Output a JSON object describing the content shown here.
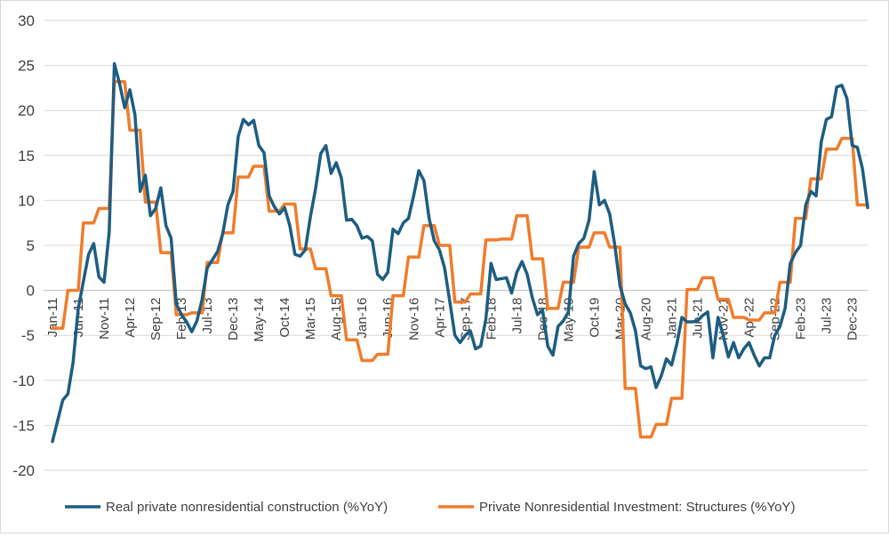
{
  "chart_data": {
    "type": "line",
    "title": "",
    "xlabel": "",
    "ylabel": "",
    "ylim": [
      -20,
      30
    ],
    "yticks": [
      30,
      25,
      20,
      15,
      10,
      5,
      0,
      -5,
      -10,
      -15,
      -20
    ],
    "ytick_labels": [
      "30",
      "25",
      "20",
      "15",
      "10",
      "5",
      "0",
      "-5",
      "-10",
      "-15",
      "-20"
    ],
    "gridlines": true,
    "legend_position": "bottom",
    "start_month": "Jan-11",
    "xtick_labels": [
      {
        "index": 0,
        "label": "Jan-11"
      },
      {
        "index": 5,
        "label": "Jun-11"
      },
      {
        "index": 10,
        "label": "Nov-11"
      },
      {
        "index": 15,
        "label": "Apr-12"
      },
      {
        "index": 20,
        "label": "Sep-12"
      },
      {
        "index": 25,
        "label": "Feb-13"
      },
      {
        "index": 30,
        "label": "Jul-13"
      },
      {
        "index": 35,
        "label": "Dec-13"
      },
      {
        "index": 40,
        "label": "May-14"
      },
      {
        "index": 45,
        "label": "Oct-14"
      },
      {
        "index": 50,
        "label": "Mar-15"
      },
      {
        "index": 55,
        "label": "Aug-15"
      },
      {
        "index": 60,
        "label": "Jan-16"
      },
      {
        "index": 65,
        "label": "Jun-16"
      },
      {
        "index": 70,
        "label": "Nov-16"
      },
      {
        "index": 75,
        "label": "Apr-17"
      },
      {
        "index": 80,
        "label": "Sep-17"
      },
      {
        "index": 85,
        "label": "Feb-18"
      },
      {
        "index": 90,
        "label": "Jul-18"
      },
      {
        "index": 95,
        "label": "Dec-18"
      },
      {
        "index": 100,
        "label": "May-19"
      },
      {
        "index": 105,
        "label": "Oct-19"
      },
      {
        "index": 110,
        "label": "Mar-20"
      },
      {
        "index": 115,
        "label": "Aug-20"
      },
      {
        "index": 120,
        "label": "Jan-21"
      },
      {
        "index": 125,
        "label": "Jun-21"
      },
      {
        "index": 130,
        "label": "Nov-21"
      },
      {
        "index": 135,
        "label": "Apr-22"
      },
      {
        "index": 140,
        "label": "Sep-22"
      },
      {
        "index": 145,
        "label": "Feb-23"
      },
      {
        "index": 150,
        "label": "Jul-23"
      },
      {
        "index": 155,
        "label": "Dec-23"
      }
    ],
    "series": [
      {
        "name": "Real private nonresidential construction (%YoY)",
        "color": "#1d5d82",
        "values": [
          -16.8,
          -14.5,
          -12.2,
          -11.5,
          -8,
          -2,
          1,
          4,
          5.2,
          1.5,
          0.9,
          6.5,
          25.2,
          23,
          20.3,
          22.3,
          19.5,
          11,
          12.8,
          8.3,
          9.1,
          11.4,
          7.2,
          5.8,
          -1.5,
          -2.7,
          -3.5,
          -4.6,
          -3.4,
          -1,
          2.5,
          3.4,
          4.3,
          6.3,
          9.5,
          11,
          17.1,
          19,
          18.4,
          18.9,
          16.1,
          15.3,
          10.5,
          9.3,
          8.5,
          9.2,
          7.2,
          4,
          3.8,
          4.5,
          8.2,
          11.3,
          15.2,
          16.1,
          13,
          14.2,
          12.5,
          7.8,
          7.9,
          7.2,
          5.8,
          6,
          5.5,
          1.8,
          1.2,
          2,
          6.8,
          6.3,
          7.5,
          8,
          10.5,
          13.3,
          12.2,
          8,
          5.5,
          4.5,
          2.5,
          -1.2,
          -5,
          -5.8,
          -5,
          -4.5,
          -6.5,
          -6.2,
          -3.2,
          3,
          1.2,
          1.3,
          1.4,
          -0.3,
          2,
          3.2,
          1.8,
          -0.8,
          -2.7,
          -2.2,
          -6.2,
          -7.2,
          -4,
          -3.4,
          -2.4,
          3.8,
          5.2,
          5.8,
          7.8,
          13.2,
          9.5,
          10,
          8.5,
          5,
          0.5,
          -1.5,
          -2.5,
          -4.5,
          -8.4,
          -8.7,
          -8.5,
          -10.8,
          -9.5,
          -7.6,
          -8.3,
          -6,
          -3,
          -3.5,
          -3.5,
          -3.4,
          -2.8,
          -2.4,
          -7.5,
          -3,
          -5,
          -7.4,
          -5.8,
          -7.5,
          -6.5,
          -5.8,
          -7.2,
          -8.4,
          -7.5,
          -7.5,
          -5,
          -4,
          -2,
          3,
          4.2,
          5,
          9.5,
          11,
          10.5,
          16.5,
          19,
          19.3,
          22.6,
          22.8,
          21.3,
          16.1,
          15.9,
          13.5,
          9.2
        ]
      },
      {
        "name": "Private Nonresidential Investment: Structures (%YoY)",
        "color": "#f07c2c",
        "values": [
          -4.2,
          -4.2,
          -4.2,
          0,
          0,
          0,
          7.5,
          7.5,
          7.5,
          9.1,
          9.1,
          9.1,
          23.2,
          23.2,
          23.2,
          17.8,
          17.8,
          17.8,
          9.8,
          9.8,
          9.8,
          4.2,
          4.2,
          4.2,
          -2.7,
          -2.7,
          -2.7,
          -2.5,
          -2.5,
          -2.5,
          3.1,
          3.1,
          3.1,
          6.4,
          6.4,
          6.4,
          12.6,
          12.6,
          12.6,
          13.8,
          13.8,
          13.8,
          8.8,
          8.8,
          8.8,
          9.6,
          9.6,
          9.6,
          4.6,
          4.6,
          4.6,
          2.4,
          2.4,
          2.4,
          -0.6,
          -0.6,
          -0.6,
          -5.5,
          -5.5,
          -5.5,
          -7.8,
          -7.8,
          -7.8,
          -7.1,
          -7.1,
          -7.1,
          -0.6,
          -0.6,
          -0.6,
          3.7,
          3.7,
          3.7,
          7.2,
          7.2,
          7.2,
          5,
          5,
          5,
          -1.3,
          -1.3,
          -1.3,
          -0.4,
          -0.4,
          -0.4,
          5.6,
          5.6,
          5.6,
          5.7,
          5.7,
          5.7,
          8.3,
          8.3,
          8.3,
          3.5,
          3.5,
          3.5,
          -2,
          -2,
          -2,
          0.9,
          0.9,
          0.9,
          4.8,
          4.8,
          4.8,
          6.4,
          6.4,
          6.4,
          4.8,
          4.8,
          4.8,
          -10.9,
          -10.9,
          -10.9,
          -16.3,
          -16.3,
          -16.3,
          -14.9,
          -14.9,
          -14.9,
          -12,
          -12,
          -12,
          0.1,
          0.1,
          0.1,
          1.4,
          1.4,
          1.4,
          -1,
          -1,
          -1,
          -3,
          -3,
          -3,
          -3.3,
          -3.3,
          -3.3,
          -2.5,
          -2.5,
          -2.5,
          0.9,
          0.9,
          0.9,
          8,
          8,
          8,
          12.4,
          12.4,
          12.4,
          15.7,
          15.7,
          15.7,
          16.9,
          16.9,
          16.9,
          9.5,
          9.5,
          9.5
        ]
      }
    ]
  }
}
